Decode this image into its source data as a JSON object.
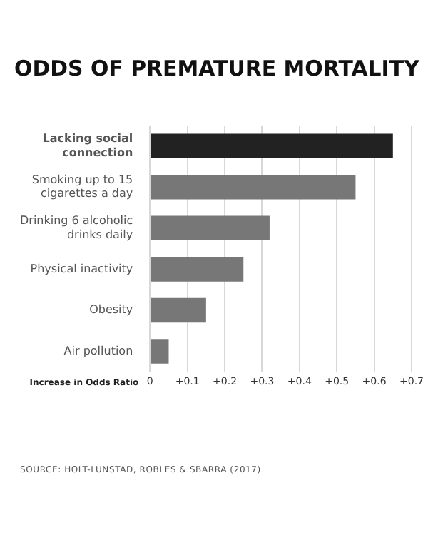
{
  "chart_data": {
    "type": "bar",
    "orientation": "horizontal",
    "title": "ODDS OF PREMATURE MORTALITY",
    "xlabel": "Increase in Odds Ratio",
    "categories": [
      "Lacking social connection",
      "Smoking up to 15 cigarettes a day",
      "Drinking 6 alcoholic drinks daily",
      "Physical inactivity",
      "Obesity",
      "Air pollution"
    ],
    "values": [
      0.65,
      0.55,
      0.32,
      0.25,
      0.15,
      0.05
    ],
    "colors": [
      "#222222",
      "#777777",
      "#777777",
      "#777777",
      "#777777",
      "#777777"
    ],
    "xlim": [
      0,
      0.7
    ],
    "xticks": [
      0,
      {
        "value": 0.1,
        "label": "+0.1"
      },
      {
        "value": 0.2,
        "label": "+0.2"
      },
      {
        "value": 0.3,
        "label": "+0.3"
      },
      {
        "value": 0.4,
        "label": "+0.4"
      },
      {
        "value": 0.5,
        "label": "+0.5"
      },
      {
        "value": 0.6,
        "label": "+0.6"
      },
      {
        "value": 0.7,
        "label": "+0.7"
      }
    ],
    "grid": "x",
    "legend": false,
    "annotations": [
      "SOURCE: HOLT-LUNSTAD, ROBLES & SBARRA (2017)"
    ]
  }
}
